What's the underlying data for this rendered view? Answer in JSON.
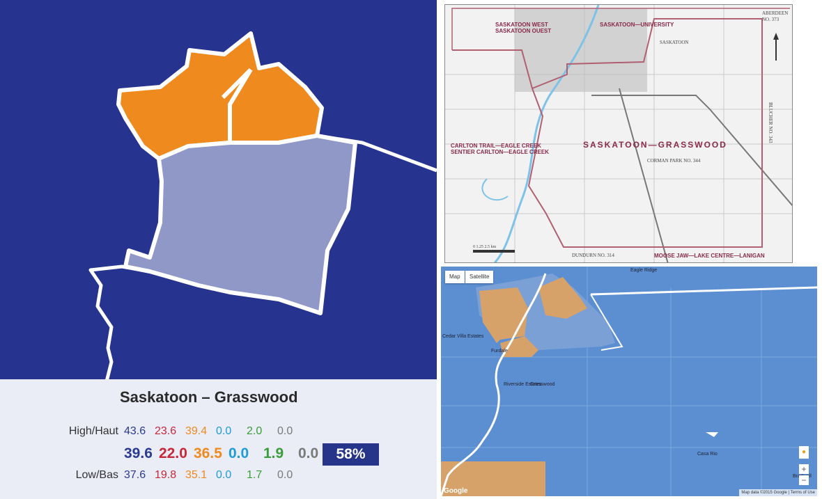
{
  "riding": {
    "name": "Saskatoon – Grasswood",
    "high_label": "High/Haut",
    "low_label": "Low/Bas",
    "high": [
      "43.6",
      "23.6",
      "39.4",
      "0.0",
      "2.0",
      "0.0"
    ],
    "projected": [
      "39.6",
      "22.0",
      "36.5",
      "0.0",
      "1.9",
      "0.0"
    ],
    "low": [
      "37.6",
      "19.8",
      "35.1",
      "0.0",
      "1.7",
      "0.0"
    ],
    "win_probability": "58%",
    "party_colors": [
      "#2b3a91",
      "#c8273a",
      "#ee8a1e",
      "#1f9bd6",
      "#3a9c3a",
      "#7a7a7a"
    ]
  },
  "official_map": {
    "labels": {
      "saskatoon_west": "SASKATOON WEST\nSASKATOON OUEST",
      "saskatoon_university": "SASKATOON—UNIVERSITY",
      "aberdeen": "ABERDEEN\nNO. 373",
      "saskatoon": "SASKATOON",
      "carlton_trail": "CARLTON TRAIL—EAGLE CREEK\nSENTIER CARLTON—EAGLE CREEK",
      "district": "SASKATOON—GRASSWOOD",
      "corman_park": "CORMAN PARK NO. 344",
      "blucher": "BLUCHER NO. 343",
      "dundurn": "DUNDURN NO. 314",
      "moose_jaw": "MOOSE JAW—LAKE CENTRE—LANIGAN",
      "scale": "0   1.25   2.5 km"
    }
  },
  "google_map": {
    "map_button": "Map",
    "satellite_button": "Satellite",
    "places": [
      "Cedar Villa Estates",
      "Furdale",
      "Riverside Estates",
      "Grasswood",
      "Casa Rio",
      "Eagle Ridge",
      "Bradwell"
    ],
    "zoom_in": "+",
    "zoom_out": "−",
    "attribution": "Map data ©2015 Google",
    "terms": "Terms of Use",
    "google_logo": "Google"
  }
}
